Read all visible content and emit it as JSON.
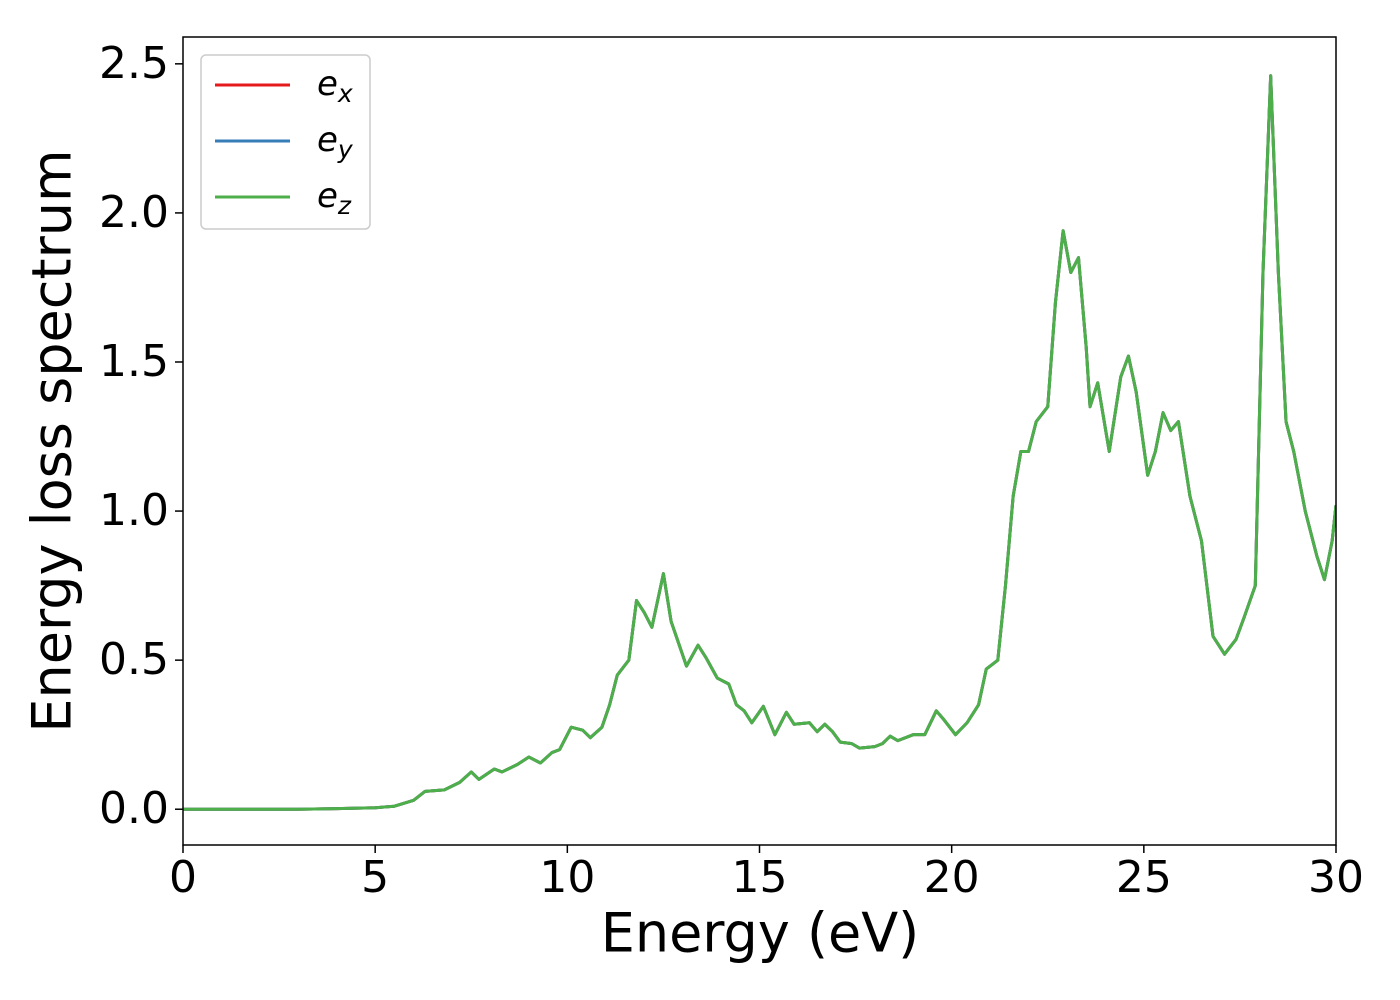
{
  "chart_data": {
    "type": "line",
    "xlabel": "Energy (eV)",
    "ylabel": "Energy loss spectrum",
    "x": [
      0,
      1,
      2,
      3,
      4,
      5,
      5.5,
      6,
      6.3,
      6.8,
      7.2,
      7.5,
      7.7,
      8.1,
      8.3,
      8.7,
      9,
      9.3,
      9.6,
      9.8,
      10.1,
      10.4,
      10.6,
      10.9,
      11.1,
      11.3,
      11.6,
      11.8,
      12.0,
      12.2,
      12.5,
      12.7,
      13.1,
      13.4,
      13.6,
      13.9,
      14.2,
      14.4,
      14.6,
      14.8,
      15.1,
      15.4,
      15.7,
      15.9,
      16.3,
      16.5,
      16.7,
      16.9,
      17.1,
      17.4,
      17.6,
      18,
      18.2,
      18.4,
      18.6,
      19,
      19.3,
      19.6,
      19.8,
      20.1,
      20.4,
      20.7,
      20.9,
      21.2,
      21.4,
      21.6,
      21.8,
      22.0,
      22.2,
      22.5,
      22.7,
      22.9,
      23.1,
      23.3,
      23.5,
      23.6,
      23.8,
      24.1,
      24.4,
      24.6,
      24.8,
      25.1,
      25.3,
      25.5,
      25.7,
      25.9,
      26.2,
      26.5,
      26.8,
      27.1,
      27.4,
      27.6,
      27.9,
      28.1,
      28.3,
      28.5,
      28.7,
      28.9,
      29.2,
      29.5,
      29.7,
      29.9,
      30
    ],
    "series": [
      {
        "name": "e_x",
        "color": "#e41a1c",
        "values": [
          0,
          0,
          0,
          0,
          0.002,
          0.005,
          0.01,
          0.03,
          0.06,
          0.065,
          0.09,
          0.125,
          0.1,
          0.135,
          0.125,
          0.15,
          0.175,
          0.155,
          0.19,
          0.2,
          0.275,
          0.265,
          0.24,
          0.275,
          0.35,
          0.45,
          0.5,
          0.7,
          0.66,
          0.61,
          0.79,
          0.63,
          0.48,
          0.55,
          0.51,
          0.44,
          0.42,
          0.35,
          0.33,
          0.29,
          0.345,
          0.25,
          0.325,
          0.285,
          0.29,
          0.26,
          0.285,
          0.26,
          0.225,
          0.22,
          0.205,
          0.21,
          0.22,
          0.245,
          0.23,
          0.25,
          0.25,
          0.33,
          0.3,
          0.25,
          0.29,
          0.35,
          0.47,
          0.5,
          0.75,
          1.05,
          1.2,
          1.2,
          1.3,
          1.35,
          1.7,
          1.94,
          1.8,
          1.85,
          1.55,
          1.35,
          1.43,
          1.2,
          1.45,
          1.52,
          1.4,
          1.12,
          1.2,
          1.33,
          1.27,
          1.3,
          1.05,
          0.9,
          0.58,
          0.52,
          0.57,
          0.64,
          0.75,
          1.8,
          2.46,
          1.8,
          1.3,
          1.2,
          1.0,
          0.85,
          0.77,
          0.9,
          1.02
        ]
      },
      {
        "name": "e_y",
        "color": "#377eb8",
        "values": [
          0,
          0,
          0,
          0,
          0.002,
          0.005,
          0.01,
          0.03,
          0.06,
          0.065,
          0.09,
          0.125,
          0.1,
          0.135,
          0.125,
          0.15,
          0.175,
          0.155,
          0.19,
          0.2,
          0.275,
          0.265,
          0.24,
          0.275,
          0.35,
          0.45,
          0.5,
          0.7,
          0.66,
          0.61,
          0.79,
          0.63,
          0.48,
          0.55,
          0.51,
          0.44,
          0.42,
          0.35,
          0.33,
          0.29,
          0.345,
          0.25,
          0.325,
          0.285,
          0.29,
          0.26,
          0.285,
          0.26,
          0.225,
          0.22,
          0.205,
          0.21,
          0.22,
          0.245,
          0.23,
          0.25,
          0.25,
          0.33,
          0.3,
          0.25,
          0.29,
          0.35,
          0.47,
          0.5,
          0.75,
          1.05,
          1.2,
          1.2,
          1.3,
          1.35,
          1.7,
          1.94,
          1.8,
          1.85,
          1.55,
          1.35,
          1.43,
          1.2,
          1.45,
          1.52,
          1.4,
          1.12,
          1.2,
          1.33,
          1.27,
          1.3,
          1.05,
          0.9,
          0.58,
          0.52,
          0.57,
          0.64,
          0.75,
          1.8,
          2.46,
          1.8,
          1.3,
          1.2,
          1.0,
          0.85,
          0.77,
          0.9,
          1.02
        ]
      },
      {
        "name": "e_z",
        "color": "#4daf4a",
        "values": [
          0,
          0,
          0,
          0,
          0.002,
          0.005,
          0.01,
          0.03,
          0.06,
          0.065,
          0.09,
          0.125,
          0.1,
          0.135,
          0.125,
          0.15,
          0.175,
          0.155,
          0.19,
          0.2,
          0.275,
          0.265,
          0.24,
          0.275,
          0.35,
          0.45,
          0.5,
          0.7,
          0.66,
          0.61,
          0.79,
          0.63,
          0.48,
          0.55,
          0.51,
          0.44,
          0.42,
          0.35,
          0.33,
          0.29,
          0.345,
          0.25,
          0.325,
          0.285,
          0.29,
          0.26,
          0.285,
          0.26,
          0.225,
          0.22,
          0.205,
          0.21,
          0.22,
          0.245,
          0.23,
          0.25,
          0.25,
          0.33,
          0.3,
          0.25,
          0.29,
          0.35,
          0.47,
          0.5,
          0.75,
          1.05,
          1.2,
          1.2,
          1.3,
          1.35,
          1.7,
          1.94,
          1.8,
          1.85,
          1.55,
          1.35,
          1.43,
          1.2,
          1.45,
          1.52,
          1.4,
          1.12,
          1.2,
          1.33,
          1.27,
          1.3,
          1.05,
          0.9,
          0.58,
          0.52,
          0.57,
          0.64,
          0.75,
          1.8,
          2.46,
          1.8,
          1.3,
          1.2,
          1.0,
          0.85,
          0.77,
          0.9,
          1.02
        ]
      }
    ],
    "xlim": [
      0,
      30
    ],
    "xticks": [
      0,
      5,
      10,
      15,
      20,
      25,
      30
    ],
    "ylim": [
      -0.12,
      2.59
    ],
    "yticks": [
      {
        "value": 0,
        "label": "0.0"
      },
      0.5,
      {
        "value": 1,
        "label": "1.0"
      },
      1.5,
      {
        "value": 2,
        "label": "2.0"
      },
      2.5
    ],
    "legend": "upper left",
    "grid": false
  }
}
